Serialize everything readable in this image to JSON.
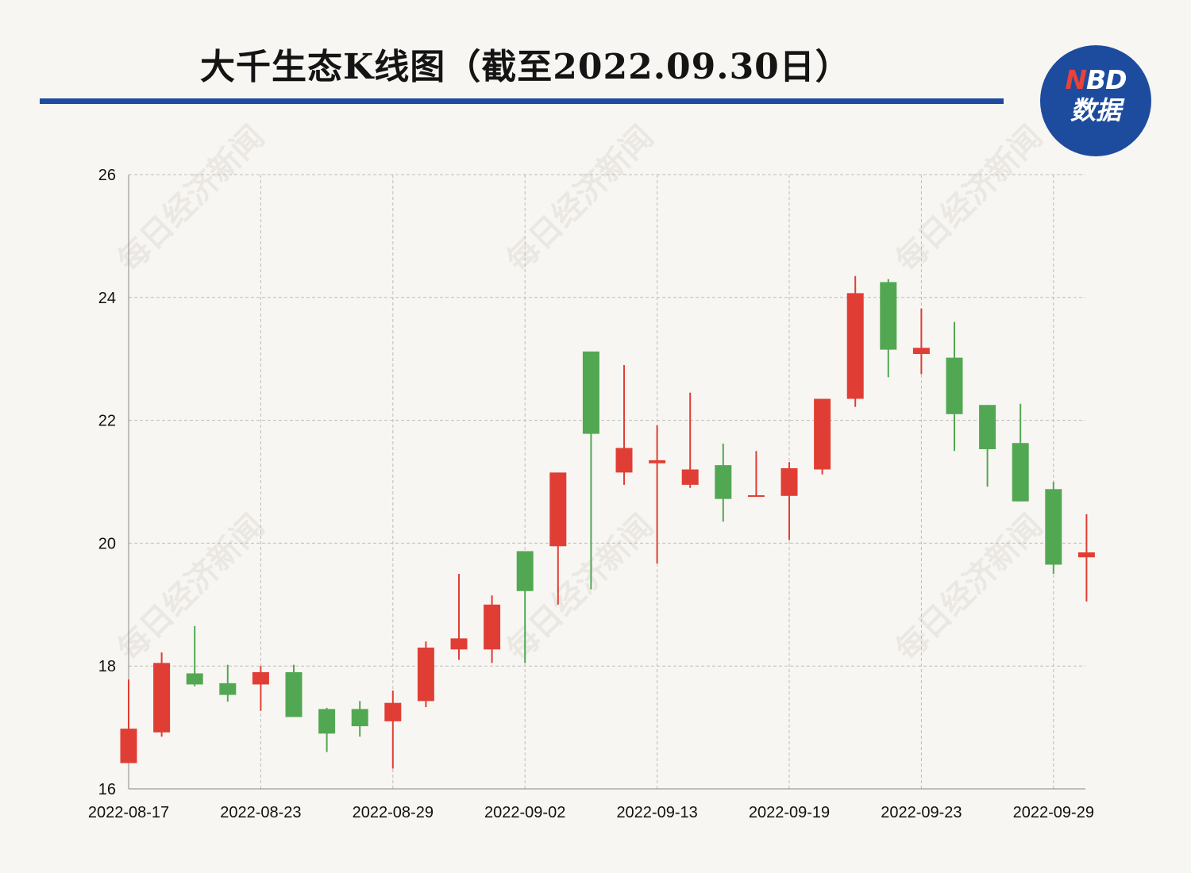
{
  "header": {
    "title": "大千生态K线图（截至2022.09.30日）",
    "logo_top_n": "N",
    "logo_top_rest": "BD",
    "logo_bottom": "数据"
  },
  "watermark": "每日经济新闻",
  "colors": {
    "up": "#e03e35",
    "down": "#52a852",
    "grid": "#bdbdbd",
    "accent": "#1d4c9e"
  },
  "chart_data": {
    "type": "candlestick",
    "title": "大千生态K线图（截至2022.09.30日）",
    "xlabel": "",
    "ylabel": "",
    "ylim": [
      16,
      26
    ],
    "yticks": [
      16,
      18,
      20,
      22,
      24,
      26
    ],
    "xtick_labels": [
      "2022-08-17",
      "2022-08-23",
      "2022-08-29",
      "2022-09-02",
      "2022-09-13",
      "2022-09-19",
      "2022-09-23",
      "2022-09-29"
    ],
    "xtick_indices": [
      0,
      4,
      8,
      12,
      16,
      20,
      24,
      28
    ],
    "grid": true,
    "candles": [
      {
        "open": 16.42,
        "close": 16.98,
        "high": 17.78,
        "low": 16.42
      },
      {
        "open": 16.92,
        "close": 18.05,
        "high": 18.22,
        "low": 16.85
      },
      {
        "open": 17.88,
        "close": 17.7,
        "high": 18.65,
        "low": 17.67
      },
      {
        "open": 17.72,
        "close": 17.53,
        "high": 18.02,
        "low": 17.42
      },
      {
        "open": 17.7,
        "close": 17.9,
        "high": 18.0,
        "low": 17.27
      },
      {
        "open": 17.9,
        "close": 17.17,
        "high": 18.02,
        "low": 17.17
      },
      {
        "open": 17.3,
        "close": 16.9,
        "high": 17.32,
        "low": 16.6
      },
      {
        "open": 17.3,
        "close": 17.02,
        "high": 17.43,
        "low": 16.85
      },
      {
        "open": 17.1,
        "close": 17.4,
        "high": 17.6,
        "low": 16.33
      },
      {
        "open": 17.43,
        "close": 18.3,
        "high": 18.4,
        "low": 17.33
      },
      {
        "open": 18.27,
        "close": 18.45,
        "high": 19.5,
        "low": 18.1
      },
      {
        "open": 18.27,
        "close": 19.0,
        "high": 19.15,
        "low": 18.05
      },
      {
        "open": 19.87,
        "close": 19.22,
        "high": 19.87,
        "low": 18.05
      },
      {
        "open": 19.95,
        "close": 21.15,
        "high": 21.15,
        "low": 19.0
      },
      {
        "open": 23.12,
        "close": 21.78,
        "high": 23.12,
        "low": 19.25
      },
      {
        "open": 21.15,
        "close": 21.55,
        "high": 22.9,
        "low": 20.95
      },
      {
        "open": 21.3,
        "close": 21.35,
        "high": 21.92,
        "low": 19.67
      },
      {
        "open": 20.95,
        "close": 21.2,
        "high": 22.45,
        "low": 20.9
      },
      {
        "open": 21.27,
        "close": 20.72,
        "high": 21.62,
        "low": 20.35
      },
      {
        "open": 20.77,
        "close": 20.78,
        "high": 21.5,
        "low": 20.77
      },
      {
        "open": 20.77,
        "close": 21.22,
        "high": 21.32,
        "low": 20.05
      },
      {
        "open": 21.2,
        "close": 22.35,
        "high": 22.35,
        "low": 21.12
      },
      {
        "open": 22.35,
        "close": 24.07,
        "high": 24.35,
        "low": 22.22
      },
      {
        "open": 24.25,
        "close": 23.15,
        "high": 24.3,
        "low": 22.7
      },
      {
        "open": 23.08,
        "close": 23.18,
        "high": 23.82,
        "low": 22.75
      },
      {
        "open": 23.02,
        "close": 22.1,
        "high": 23.6,
        "low": 21.5
      },
      {
        "open": 22.25,
        "close": 21.53,
        "high": 22.25,
        "low": 20.92
      },
      {
        "open": 21.63,
        "close": 20.68,
        "high": 22.27,
        "low": 20.68
      },
      {
        "open": 20.88,
        "close": 19.65,
        "high": 21.0,
        "low": 19.5
      },
      {
        "open": 19.77,
        "close": 19.85,
        "high": 20.47,
        "low": 19.05
      }
    ]
  }
}
